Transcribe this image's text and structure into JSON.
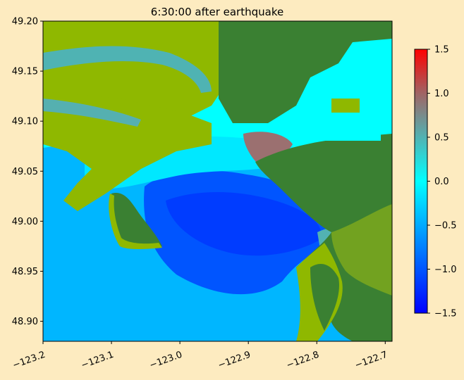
{
  "chart_data": {
    "type": "heatmap",
    "title": "6:30:00 after earthquake",
    "xlabel": "",
    "ylabel": "",
    "xlim": [
      -123.2,
      -122.69
    ],
    "ylim": [
      48.88,
      49.2
    ],
    "x_ticks": [
      -123.2,
      -123.1,
      -123.0,
      -122.9,
      -122.8,
      -122.7
    ],
    "x_tick_labels": [
      "−123.2",
      "−123.1",
      "−123.0",
      "−122.9",
      "−122.8",
      "−122.7"
    ],
    "y_ticks": [
      48.9,
      48.95,
      49.0,
      49.05,
      49.1,
      49.15,
      49.2
    ],
    "y_tick_labels": [
      "48.90",
      "48.95",
      "49.00",
      "49.05",
      "49.10",
      "49.15",
      "49.20"
    ],
    "colorbar": {
      "vmin": -1.5,
      "vmax": 1.5,
      "ticks": [
        -1.5,
        -1.0,
        -0.5,
        0.0,
        0.5,
        1.0,
        1.5
      ],
      "tick_labels": [
        "−1.5",
        "−1.0",
        "−0.5",
        "0.0",
        "0.5",
        "1.0",
        "1.5"
      ],
      "colors": [
        "#0000ff",
        "#0055ff",
        "#00aaff",
        "#00ffff",
        "#52b2b2",
        "#a06464",
        "#ff0000"
      ]
    },
    "land_colors": [
      "#8fb800",
      "#3a8032"
    ],
    "grid": false
  }
}
